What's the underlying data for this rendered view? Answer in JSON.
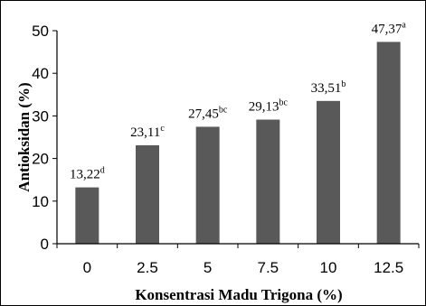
{
  "chart_data": {
    "type": "bar",
    "categories": [
      "0",
      "2.5",
      "5",
      "7.5",
      "10",
      "12.5"
    ],
    "values": [
      13.22,
      23.11,
      27.45,
      29.13,
      33.51,
      47.37
    ],
    "data_labels": [
      {
        "value": "13,22",
        "letter": "d"
      },
      {
        "value": "23,11",
        "letter": "c"
      },
      {
        "value": "27,45",
        "letter": "bc"
      },
      {
        "value": "29,13",
        "letter": "bc"
      },
      {
        "value": "33,51",
        "letter": "b"
      },
      {
        "value": "47,37",
        "letter": "a"
      }
    ],
    "yticks": [
      "0",
      "10",
      "20",
      "30",
      "40",
      "50"
    ],
    "ylim": [
      0,
      50
    ],
    "xlabel": "Konsentrasi Madu Trigona (%)",
    "ylabel": "Antioksidan (%)",
    "title": "",
    "grid": false,
    "bar_color": "#595959"
  }
}
